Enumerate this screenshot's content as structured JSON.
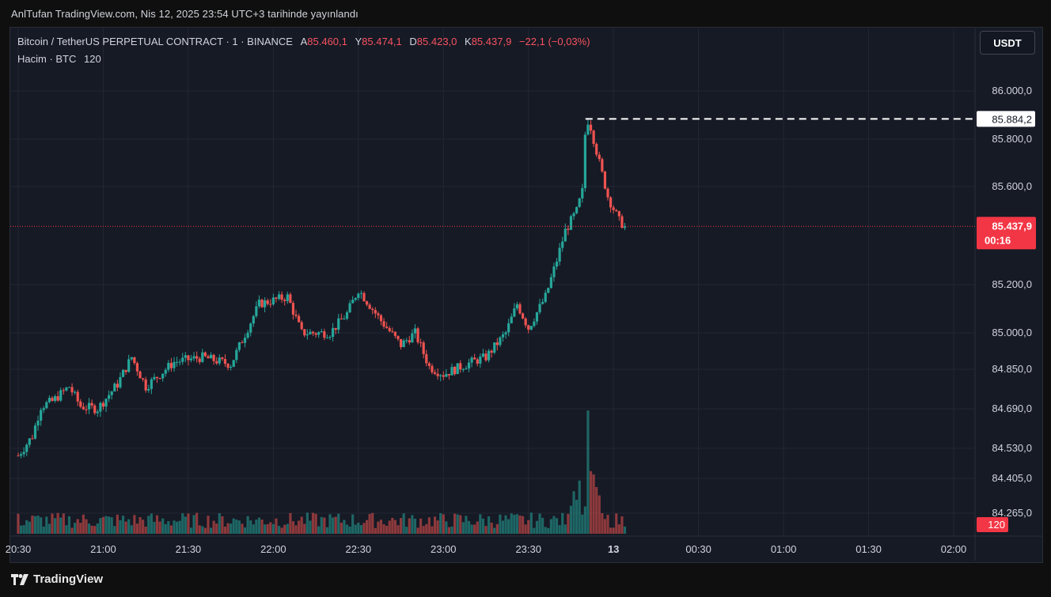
{
  "page": {
    "publisher_line": "AnlTufan TradingView.com, Nis 12, 2025 23:54 UTC+3 tarihinde yayınlandı",
    "brand": "TradingView"
  },
  "legend": {
    "symbol": "Bitcoin / TetherUS PERPETUAL CONTRACT · 1 · BINANCE",
    "open_label": "A",
    "open_value": "85.460,1",
    "high_label": "Y",
    "high_value": "85.474,1",
    "low_label": "D",
    "low_value": "85.423,0",
    "close_label": "K",
    "close_value": "85.437,9",
    "change": "−22,1 (−0,03%)",
    "volume_label": "Hacim · BTC",
    "volume_value": "120"
  },
  "currency_button": "USDT",
  "colors": {
    "up": "#26a69a",
    "down": "#ef5350",
    "bg": "#161a25",
    "grid": "#232733",
    "price_tag": "#f23645"
  },
  "chart_data": {
    "type": "candlestick",
    "symbol": "BTCUSDT.P",
    "interval": "1m",
    "price_ticks": [
      {
        "value": 86000,
        "label": "86.000,0"
      },
      {
        "value": 85800,
        "label": "85.800,0"
      },
      {
        "value": 85600,
        "label": "85.600,0"
      },
      {
        "value": 85200,
        "label": "85.200,0"
      },
      {
        "value": 85000,
        "label": "85.000,0"
      },
      {
        "value": 84850,
        "label": "84.850,0"
      },
      {
        "value": 84690,
        "label": "84.690,0"
      },
      {
        "value": 84530,
        "label": "84.530,0"
      },
      {
        "value": 84405,
        "label": "84.405,0"
      },
      {
        "value": 84265,
        "label": "84.265,0"
      }
    ],
    "time_ticks": [
      {
        "t": 0,
        "label": "20:30"
      },
      {
        "t": 30,
        "label": "21:00"
      },
      {
        "t": 60,
        "label": "21:30"
      },
      {
        "t": 90,
        "label": "22:00"
      },
      {
        "t": 120,
        "label": "22:30"
      },
      {
        "t": 150,
        "label": "23:00"
      },
      {
        "t": 180,
        "label": "23:30"
      },
      {
        "t": 210,
        "label": "13"
      },
      {
        "t": 240,
        "label": "00:30"
      },
      {
        "t": 270,
        "label": "01:00"
      },
      {
        "t": 300,
        "label": "01:30"
      },
      {
        "t": 330,
        "label": "02:00"
      }
    ],
    "time_axis": {
      "t_min": -2,
      "t_max": 340
    },
    "high_marker": {
      "value": 85884.2,
      "label": "85.884,2",
      "t": 199
    },
    "current_price": {
      "value": 85437.9,
      "label": "85.437,9",
      "countdown": "00:16"
    },
    "volume_badge": "120",
    "anchors": [
      [
        0,
        84500
      ],
      [
        5,
        84580
      ],
      [
        8,
        84700
      ],
      [
        12,
        84720
      ],
      [
        18,
        84780
      ],
      [
        22,
        84700
      ],
      [
        28,
        84690
      ],
      [
        35,
        84790
      ],
      [
        40,
        84900
      ],
      [
        45,
        84780
      ],
      [
        55,
        84880
      ],
      [
        65,
        84900
      ],
      [
        75,
        84870
      ],
      [
        85,
        85120
      ],
      [
        95,
        85150
      ],
      [
        100,
        85000
      ],
      [
        110,
        85000
      ],
      [
        116,
        85080
      ],
      [
        120,
        85180
      ],
      [
        128,
        85050
      ],
      [
        135,
        84950
      ],
      [
        140,
        85000
      ],
      [
        145,
        84860
      ],
      [
        150,
        84830
      ],
      [
        160,
        84880
      ],
      [
        165,
        84900
      ],
      [
        172,
        85000
      ],
      [
        176,
        85120
      ],
      [
        180,
        85020
      ],
      [
        186,
        85150
      ],
      [
        190,
        85300
      ],
      [
        193,
        85420
      ],
      [
        197,
        85500
      ],
      [
        199,
        85580
      ],
      [
        200,
        85820
      ],
      [
        202,
        85850
      ],
      [
        205,
        85700
      ],
      [
        208,
        85560
      ],
      [
        212,
        85460
      ],
      [
        214,
        85437.9
      ]
    ],
    "volume_scale_max": 240
  }
}
